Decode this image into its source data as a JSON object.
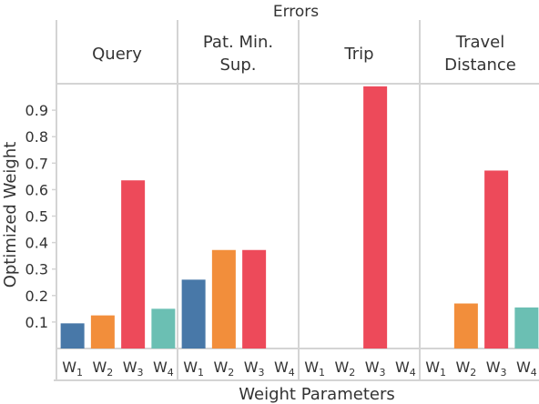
{
  "chart_data": {
    "type": "bar",
    "title": "Errors",
    "xlabel": "Weight Parameters",
    "ylabel": "Optimized Weight",
    "ylim": [
      0,
      1.0
    ],
    "yticks": [
      "0.1",
      "0.2",
      "0.3",
      "0.4",
      "0.5",
      "0.6",
      "0.7",
      "0.8",
      "0.9"
    ],
    "grid": false,
    "categories": [
      "W1",
      "W2",
      "W3",
      "W4"
    ],
    "colors": [
      "#4878a8",
      "#f28e3b",
      "#ed4a5a",
      "#6bbfb3"
    ],
    "panels": [
      {
        "title_lines": [
          "Query"
        ],
        "values": [
          0.095,
          0.125,
          0.635,
          0.15
        ]
      },
      {
        "title_lines": [
          "Pat. Min.",
          "Sup."
        ],
        "values": [
          0.26,
          0.372,
          0.372,
          0
        ]
      },
      {
        "title_lines": [
          "Trip"
        ],
        "values": [
          0,
          0,
          0.99,
          0
        ]
      },
      {
        "title_lines": [
          "Travel",
          "Distance"
        ],
        "values": [
          0,
          0.17,
          0.672,
          0.155
        ]
      }
    ]
  }
}
